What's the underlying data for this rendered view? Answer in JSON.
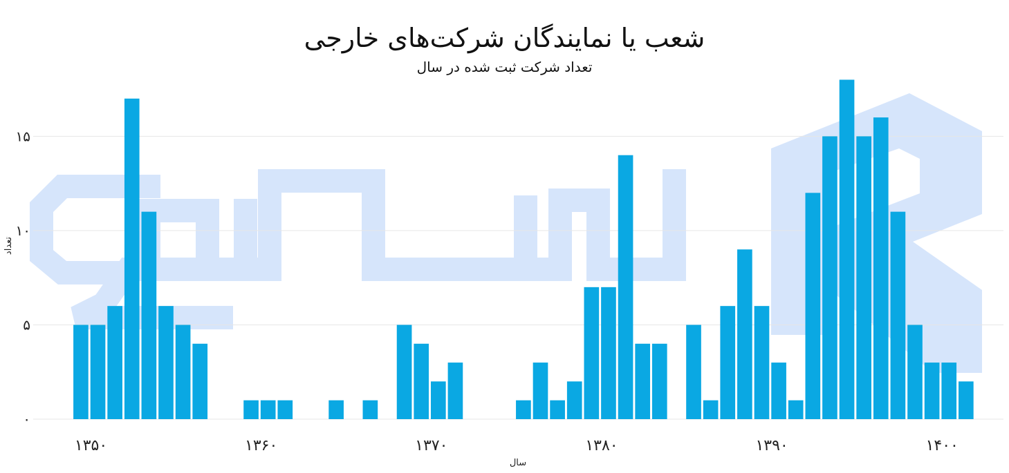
{
  "chart_data": {
    "type": "bar",
    "title": "شعب یا نمایندگان شرکت‌های خارجی",
    "subtitle": "تعداد شرکت ثبت شده در سال",
    "xlabel": "سال",
    "ylabel": "تعداد",
    "x": [
      1351,
      1352,
      1353,
      1354,
      1355,
      1356,
      1357,
      1358,
      1359,
      1360,
      1361,
      1362,
      1363,
      1364,
      1365,
      1366,
      1367,
      1368,
      1369,
      1370,
      1371,
      1372,
      1373,
      1374,
      1375,
      1376,
      1377,
      1378,
      1379,
      1380,
      1381,
      1382,
      1383,
      1384,
      1385,
      1386,
      1387,
      1388,
      1389,
      1390,
      1391,
      1392,
      1393,
      1394,
      1395,
      1396,
      1397,
      1398,
      1399,
      1400,
      1401,
      1402,
      1403
    ],
    "values": [
      5,
      5,
      6,
      17,
      11,
      6,
      5,
      4,
      0,
      0,
      1,
      1,
      1,
      0,
      0,
      1,
      0,
      1,
      0,
      5,
      4,
      2,
      3,
      0,
      0,
      0,
      1,
      3,
      1,
      2,
      7,
      7,
      14,
      4,
      4,
      0,
      5,
      1,
      6,
      9,
      6,
      3,
      1,
      12,
      15,
      18,
      15,
      16,
      11,
      5,
      3,
      3,
      2
    ],
    "ylim": [
      0,
      18.2
    ],
    "xlim": [
      1348.2,
      1405.2
    ],
    "y_ticks": [
      {
        "value": 0,
        "label": "۰"
      },
      {
        "value": 5,
        "label": "۵"
      },
      {
        "value": 10,
        "label": "۱۰"
      },
      {
        "value": 15,
        "label": "۱۵"
      }
    ],
    "x_ticks": [
      {
        "value": 1352,
        "label": "۱۳۵۰"
      },
      {
        "value": 1362,
        "label": "۱۳۶۰"
      },
      {
        "value": 1372,
        "label": "۱۳۷۰"
      },
      {
        "value": 1382,
        "label": "۱۳۸۰"
      },
      {
        "value": 1392,
        "label": "۱۳۹۰"
      },
      {
        "value": 1402,
        "label": "۱۴۰۰"
      }
    ],
    "grid": "y",
    "legend": "none",
    "bar_color": "#0aa8e3",
    "grid_color": "#e6e6e6"
  },
  "watermark": {
    "name": "company-logo-watermark",
    "color": "#d4e4fb"
  }
}
